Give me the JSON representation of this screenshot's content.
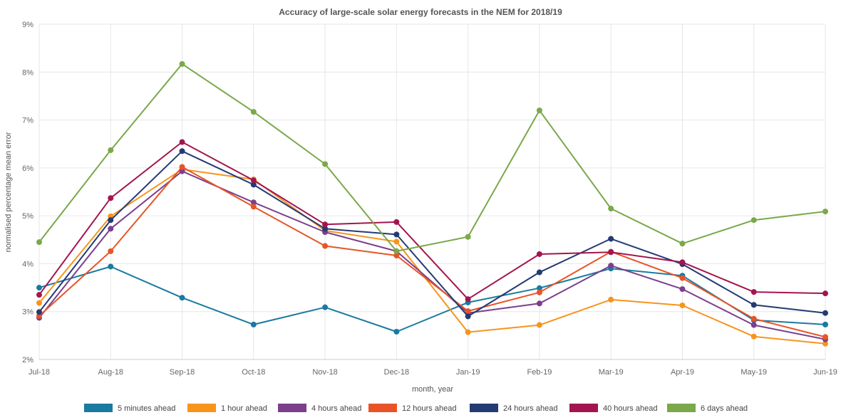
{
  "chart_data": {
    "type": "line",
    "title": "Accuracy of large-scale solar energy forecasts in the NEM for 2018/19",
    "xlabel": "month, year",
    "ylabel": "normalised percentage mean error",
    "categories": [
      "Jul-18",
      "Aug-18",
      "Sep-18",
      "Oct-18",
      "Nov-18",
      "Dec-18",
      "Jan-19",
      "Feb-19",
      "Mar-19",
      "Apr-19",
      "May-19",
      "Jun-19"
    ],
    "ylim": [
      2,
      9
    ],
    "yticks": [
      2,
      3,
      4,
      5,
      6,
      7,
      8,
      9
    ],
    "ytick_labels": [
      "2%",
      "3%",
      "4%",
      "5%",
      "6%",
      "7%",
      "8%",
      "9%"
    ],
    "grid": true,
    "legend_position": "bottom",
    "series": [
      {
        "name": "5 minutes ahead",
        "color": "#1a7aa0",
        "values": [
          3.5,
          3.94,
          3.29,
          2.73,
          3.09,
          2.58,
          3.19,
          3.49,
          3.9,
          3.75,
          2.82,
          2.73
        ]
      },
      {
        "name": "1 hour ahead",
        "color": "#f7941d",
        "values": [
          3.18,
          4.99,
          5.97,
          5.76,
          4.69,
          4.46,
          2.57,
          2.72,
          3.25,
          3.13,
          2.48,
          2.33
        ]
      },
      {
        "name": "4 hours ahead",
        "color": "#7b3f8c",
        "values": [
          2.87,
          4.73,
          5.93,
          5.28,
          4.66,
          4.26,
          2.97,
          3.17,
          3.96,
          3.47,
          2.72,
          2.42
        ]
      },
      {
        "name": "12 hours ahead",
        "color": "#e85426",
        "values": [
          2.91,
          4.26,
          6.02,
          5.19,
          4.37,
          4.17,
          3.01,
          3.4,
          4.25,
          3.7,
          2.85,
          2.47
        ]
      },
      {
        "name": "24 hours ahead",
        "color": "#243a73",
        "values": [
          2.99,
          4.91,
          6.35,
          5.65,
          4.73,
          4.61,
          2.9,
          3.82,
          4.52,
          3.99,
          3.14,
          2.97
        ]
      },
      {
        "name": "40 hours ahead",
        "color": "#a3154f",
        "values": [
          3.35,
          5.37,
          6.54,
          5.74,
          4.82,
          4.87,
          3.26,
          4.2,
          4.24,
          4.03,
          3.41,
          3.38
        ]
      },
      {
        "name": "6 days ahead",
        "color": "#7aa84a",
        "values": [
          4.45,
          6.37,
          8.17,
          7.17,
          6.08,
          4.26,
          4.56,
          7.2,
          5.15,
          4.42,
          4.91,
          5.09
        ]
      }
    ]
  }
}
